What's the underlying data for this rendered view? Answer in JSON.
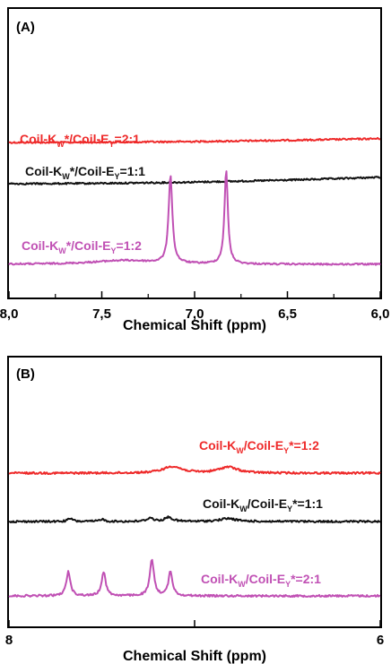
{
  "chart_data": [
    {
      "type": "line",
      "panel_label": "(A)",
      "xlabel": "Chemical Shift (ppm)",
      "xlim": [
        8.0,
        6.0
      ],
      "x_reversed": true,
      "ticks": [
        {
          "value": 8.0,
          "label": "8,0"
        },
        {
          "value": 7.5,
          "label": "7,5"
        },
        {
          "value": 7.0,
          "label": "7,0"
        },
        {
          "value": 6.5,
          "label": "6,5"
        },
        {
          "value": 6.0,
          "label": "6,0"
        }
      ],
      "series": [
        {
          "label": {
            "a": "Coil-K",
            "b": "W",
            "c": "*/Coil-E",
            "d": "Y",
            "e": "=2:1"
          },
          "color": "#ee2a2a",
          "baseline": 0.62,
          "drift": 0.03,
          "peaks": []
        },
        {
          "label": {
            "a": "Coil-K",
            "b": "W",
            "c": "*/Coil-E",
            "d": "Y",
            "e": "=1:1"
          },
          "color": "#111111",
          "baseline": 0.44,
          "drift": 0.05,
          "peaks": []
        },
        {
          "label": {
            "a": "Coil-K",
            "b": "W",
            "c": "*/Coil-E",
            "d": "Y",
            "e": "=1:2"
          },
          "color": "#c050b4",
          "baseline": 0.05,
          "drift": 0.0,
          "peaks": [
            {
              "x": 7.38,
              "h": 0.03,
              "w": 0.2
            },
            {
              "x": 7.13,
              "h": 0.68,
              "w": 0.012
            },
            {
              "x": 6.83,
              "h": 0.72,
              "w": 0.011
            }
          ]
        }
      ]
    },
    {
      "type": "line",
      "panel_label": "(B)",
      "xlabel": "Chemical Shift (ppm)",
      "xlim": [
        8.0,
        6.0
      ],
      "x_reversed": true,
      "ticks": [
        {
          "value": 8.0,
          "label": "8"
        },
        {
          "value": 7.0,
          "label": ""
        },
        {
          "value": 6.0,
          "label": "6"
        }
      ],
      "series": [
        {
          "label": {
            "a": "Coil-K",
            "b": "W",
            "c": "/Coil-E",
            "d": "Y",
            "e": "*=1:2"
          },
          "color": "#ee2a2a",
          "baseline": 0.52,
          "drift": 0.0,
          "peaks": [
            {
              "x": 7.12,
              "h": 0.055,
              "w": 0.06
            },
            {
              "x": 6.82,
              "h": 0.05,
              "w": 0.06
            }
          ]
        },
        {
          "label": {
            "a": "Coil-K",
            "b": "W",
            "c": "/Coil-E",
            "d": "Y",
            "e": "*=1:1"
          },
          "color": "#111111",
          "baseline": 0.3,
          "drift": 0.0,
          "peaks": [
            {
              "x": 7.67,
              "h": 0.025,
              "w": 0.015
            },
            {
              "x": 7.5,
              "h": 0.02,
              "w": 0.015
            },
            {
              "x": 7.24,
              "h": 0.03,
              "w": 0.02
            },
            {
              "x": 7.14,
              "h": 0.035,
              "w": 0.025
            },
            {
              "x": 6.82,
              "h": 0.025,
              "w": 0.05
            }
          ]
        },
        {
          "label": {
            "a": "Coil-K",
            "b": "W",
            "c": "/Coil-E",
            "d": "Y",
            "e": "*=2:1"
          },
          "color": "#c050b4",
          "baseline": 0.08,
          "drift": 0.0,
          "peaks": [
            {
              "x": 7.68,
              "h": 0.2,
              "w": 0.013
            },
            {
              "x": 7.49,
              "h": 0.2,
              "w": 0.013
            },
            {
              "x": 7.23,
              "h": 0.3,
              "w": 0.013
            },
            {
              "x": 7.13,
              "h": 0.2,
              "w": 0.013
            }
          ]
        }
      ]
    }
  ]
}
